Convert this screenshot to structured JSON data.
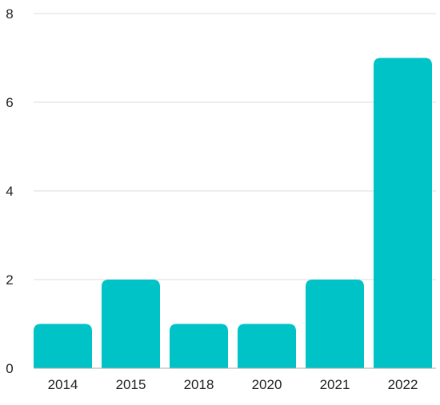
{
  "chart_data": {
    "type": "bar",
    "categories": [
      "2014",
      "2015",
      "2018",
      "2020",
      "2021",
      "2022"
    ],
    "values": [
      1,
      2,
      1,
      1,
      2,
      7
    ],
    "ylim": [
      0,
      8
    ],
    "yticks": [
      0,
      2,
      4,
      6,
      8
    ],
    "grid": true,
    "bar_color": "#00C3C8",
    "grid_color": "#DDDDDD",
    "axis_color": "#AAAAAA",
    "title": "",
    "xlabel": "",
    "ylabel": ""
  }
}
